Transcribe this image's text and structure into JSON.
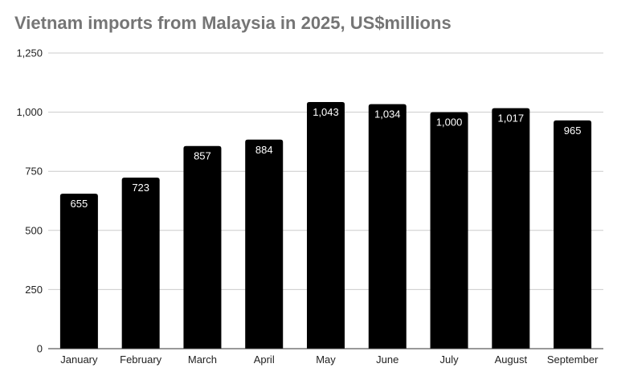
{
  "chart_data": {
    "type": "bar",
    "title": "Vietnam imports from Malaysia in 2025, US$millions",
    "categories": [
      "January",
      "February",
      "March",
      "April",
      "May",
      "June",
      "July",
      "August",
      "September"
    ],
    "values": [
      655,
      723,
      857,
      884,
      1043,
      1034,
      1000,
      1017,
      965
    ],
    "value_labels": [
      "655",
      "723",
      "857",
      "884",
      "1,043",
      "1,034",
      "1,000",
      "1,017",
      "965"
    ],
    "y_ticks": [
      0,
      250,
      500,
      750,
      1000,
      1250
    ],
    "y_tick_labels": [
      "0",
      "250",
      "500",
      "750",
      "1,000",
      "1,250"
    ],
    "ylim": [
      0,
      1250
    ],
    "xlabel": "",
    "ylabel": "",
    "grid": true,
    "legend": "none",
    "colors": {
      "bar": "#000000",
      "bar_label": "#ffffff",
      "grid": "#cccccc",
      "axis": "#333333",
      "title": "#757575"
    }
  }
}
